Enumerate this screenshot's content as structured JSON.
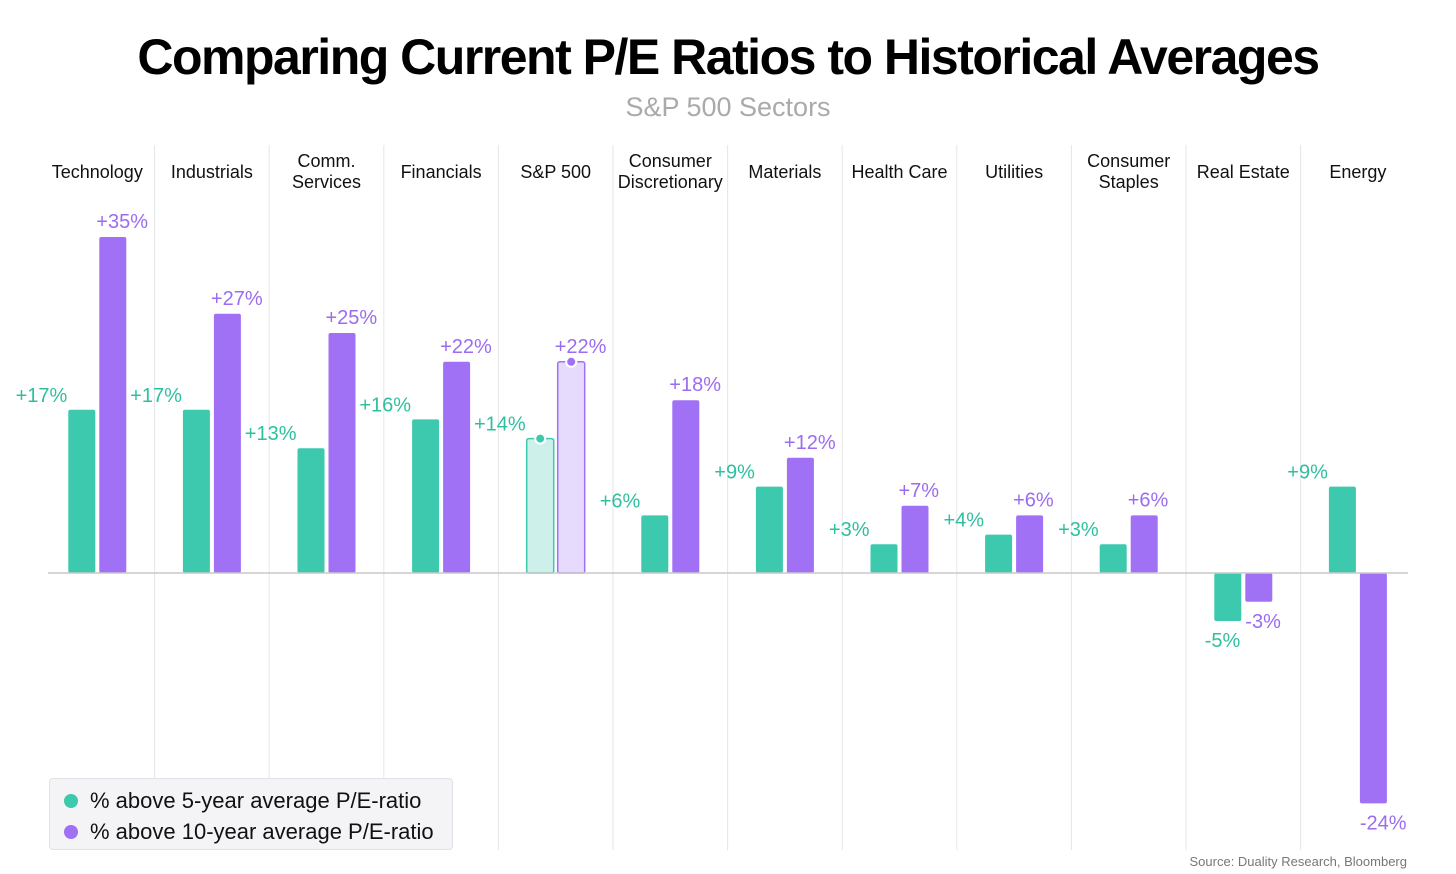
{
  "chart_data": {
    "type": "bar",
    "title": "Comparing Current P/E Ratios to Historical Averages",
    "subtitle": "S&P 500 Sectors",
    "categories": [
      "Technology",
      "Industrials",
      "Comm.\nServices",
      "Financials",
      "S&P 500",
      "Consumer\nDiscretionary",
      "Materials",
      "Health Care",
      "Utilities",
      "Consumer\nStaples",
      "Real Estate",
      "Energy"
    ],
    "highlight_category": "S&P 500",
    "series": [
      {
        "name": "% above 5-year average P/E-ratio",
        "color": "#3cc9ad",
        "label_color": "#2fbf9f",
        "values": [
          17,
          17,
          13,
          16,
          14,
          6,
          9,
          3,
          4,
          3,
          -5,
          9
        ]
      },
      {
        "name": "% above 10-year average P/E-ratio",
        "color": "#a070f5",
        "label_color": "#9b6cf0",
        "values": [
          35,
          27,
          25,
          22,
          22,
          18,
          12,
          7,
          6,
          6,
          -3,
          -24
        ]
      }
    ],
    "data_labels": [
      [
        "+17%",
        "+17%",
        "+13%",
        "+16%",
        "+14%",
        "+6%",
        "+9%",
        "+3%",
        "+4%",
        "+3%",
        "-5%",
        "+9%"
      ],
      [
        "+35%",
        "+27%",
        "+25%",
        "+22%",
        "+22%",
        "+18%",
        "+12%",
        "+7%",
        "+6%",
        "+6%",
        "-3%",
        "-24%"
      ]
    ],
    "ylim": [
      -29,
      40
    ],
    "grid": "vertical separators",
    "legend_placement": "bottom-left",
    "source": "Source: Duality Research, Bloomberg"
  }
}
